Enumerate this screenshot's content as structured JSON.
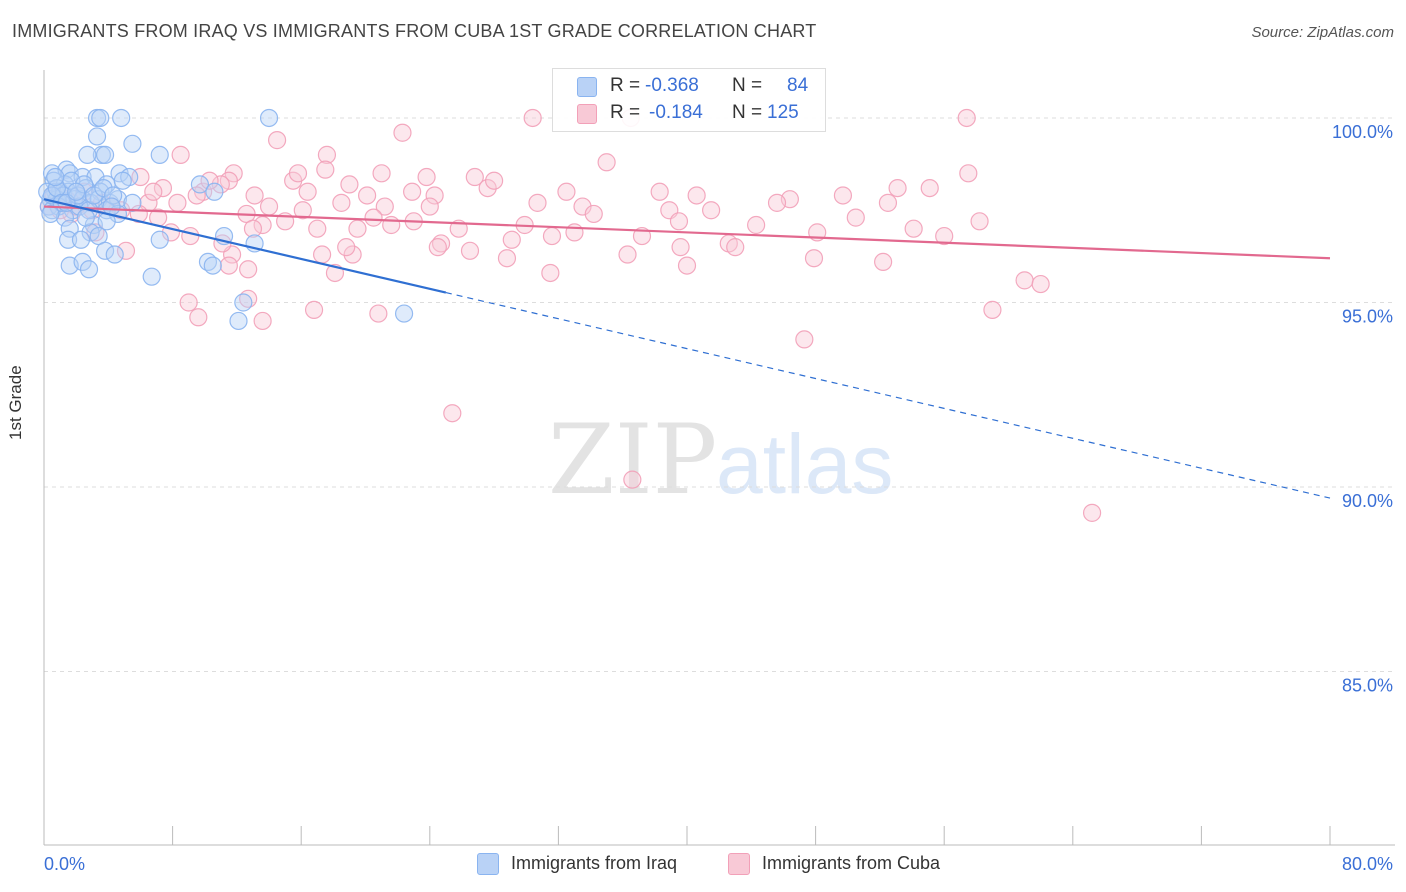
{
  "header": {
    "title": "IMMIGRANTS FROM IRAQ VS IMMIGRANTS FROM CUBA 1ST GRADE CORRELATION CHART",
    "source": "Source: ZipAtlas.com"
  },
  "watermark": {
    "zip": "ZIP",
    "atlas": "atlas"
  },
  "colors": {
    "iraq": "#8ab4f0",
    "iraq_fill": "#b9d2f6",
    "iraq_line": "#2f6fd2",
    "cuba": "#f2a0b8",
    "cuba_fill": "#f8c9d6",
    "cuba_line": "#e2698f",
    "axis_text": "#3a6fd6",
    "grid": "#dddddd"
  },
  "stats": [
    {
      "r_label": "R =",
      "r_value": "-0.368",
      "n_label": "N =",
      "n_value": "84"
    },
    {
      "r_label": "R =",
      "r_value": "-0.184",
      "n_label": "N =",
      "n_value": "125"
    }
  ],
  "legend": [
    {
      "label": "Immigrants from Iraq"
    },
    {
      "label": "Immigrants from Cuba"
    }
  ],
  "chart_data": {
    "type": "scatter",
    "title": "IMMIGRANTS FROM IRAQ VS IMMIGRANTS FROM CUBA 1ST GRADE CORRELATION CHART",
    "ylabel": "1st Grade",
    "xlabel": "",
    "xlim": [
      0,
      80
    ],
    "ylim": [
      80.3,
      101.3
    ],
    "x_tick_labels": [
      "0.0%",
      "80.0%"
    ],
    "y_ticks": [
      {
        "value": 100,
        "label": "100.0%"
      },
      {
        "value": 95,
        "label": "95.0%"
      },
      {
        "value": 90,
        "label": "90.0%"
      },
      {
        "value": 85,
        "label": "85.0%"
      }
    ],
    "grid": "horizontal dashed",
    "series": [
      {
        "name": "Immigrants from Iraq",
        "trend": {
          "x_start": 0,
          "y_start": 97.8,
          "x_solid_end": 25,
          "x_end": 80,
          "y_end": 89.7
        },
        "points": [
          [
            3.3,
            100
          ],
          [
            3.5,
            100
          ],
          [
            4.8,
            100
          ],
          [
            14,
            100
          ],
          [
            3.3,
            99.5
          ],
          [
            5.5,
            99.3
          ],
          [
            7.2,
            99
          ],
          [
            3.6,
            99
          ],
          [
            2.7,
            99
          ],
          [
            3.8,
            99
          ],
          [
            0.5,
            98.5
          ],
          [
            1.4,
            98.6
          ],
          [
            1.6,
            98.5
          ],
          [
            2.4,
            98.4
          ],
          [
            3.2,
            98.4
          ],
          [
            4.7,
            98.5
          ],
          [
            5.3,
            98.4
          ],
          [
            0.6,
            98.3
          ],
          [
            1.3,
            98.2
          ],
          [
            3.9,
            98.2
          ],
          [
            9.7,
            98.2
          ],
          [
            0.7,
            98
          ],
          [
            1.0,
            98
          ],
          [
            1.5,
            98
          ],
          [
            2.6,
            98.1
          ],
          [
            3.5,
            98
          ],
          [
            10.6,
            98
          ],
          [
            0.4,
            97.8
          ],
          [
            0.8,
            97.8
          ],
          [
            1.2,
            97.9
          ],
          [
            1.9,
            97.8
          ],
          [
            2.4,
            97.8
          ],
          [
            2.9,
            97.7
          ],
          [
            3.4,
            97.8
          ],
          [
            4.1,
            97.7
          ],
          [
            4.6,
            97.8
          ],
          [
            5.5,
            97.7
          ],
          [
            0.3,
            97.6
          ],
          [
            0.9,
            97.6
          ],
          [
            1.8,
            97.5
          ],
          [
            2.2,
            97.6
          ],
          [
            3.9,
            97.5
          ],
          [
            4.6,
            97.4
          ],
          [
            0.5,
            97.5
          ],
          [
            1.3,
            97.3
          ],
          [
            3.1,
            97.1
          ],
          [
            3.9,
            97.2
          ],
          [
            1.6,
            97
          ],
          [
            2.9,
            96.9
          ],
          [
            3.4,
            96.8
          ],
          [
            1.5,
            96.7
          ],
          [
            2.3,
            96.7
          ],
          [
            7.2,
            96.7
          ],
          [
            11.2,
            96.8
          ],
          [
            13.1,
            96.6
          ],
          [
            3.8,
            96.4
          ],
          [
            4.4,
            96.3
          ],
          [
            1.6,
            96
          ],
          [
            2.4,
            96.1
          ],
          [
            2.8,
            95.9
          ],
          [
            10.2,
            96.1
          ],
          [
            10.5,
            96
          ],
          [
            6.7,
            95.7
          ],
          [
            12.4,
            95
          ],
          [
            12.1,
            94.5
          ],
          [
            22.4,
            94.7
          ],
          [
            0.2,
            98
          ],
          [
            0.5,
            97.9
          ],
          [
            0.8,
            98.1
          ],
          [
            1.1,
            97.7
          ],
          [
            1.7,
            98.3
          ],
          [
            2.1,
            97.9
          ],
          [
            2.5,
            98.2
          ],
          [
            2.8,
            97.5
          ],
          [
            3.1,
            97.9
          ],
          [
            3.7,
            98.1
          ],
          [
            4.3,
            97.9
          ],
          [
            4.9,
            98.3
          ],
          [
            1.4,
            97.7
          ],
          [
            2.0,
            98.0
          ],
          [
            0.4,
            97.4
          ],
          [
            0.7,
            98.4
          ],
          [
            2.6,
            97.3
          ],
          [
            4.2,
            97.6
          ]
        ]
      },
      {
        "name": "Immigrants from Cuba",
        "trend": {
          "x_start": 0,
          "y_start": 97.6,
          "x_end": 80,
          "y_end": 96.2
        },
        "points": [
          [
            30.4,
            100
          ],
          [
            36.5,
            100
          ],
          [
            57.4,
            100
          ],
          [
            14.5,
            99.4
          ],
          [
            22.3,
            99.6
          ],
          [
            8.5,
            99
          ],
          [
            17.6,
            99
          ],
          [
            21.0,
            98.5
          ],
          [
            23.8,
            98.4
          ],
          [
            57.5,
            98.5
          ],
          [
            11.8,
            98.5
          ],
          [
            11.5,
            98.3
          ],
          [
            15.5,
            98.3
          ],
          [
            17.5,
            98.6
          ],
          [
            26.8,
            98.4
          ],
          [
            7.4,
            98.1
          ],
          [
            11.0,
            98.2
          ],
          [
            16.4,
            98
          ],
          [
            22.9,
            98
          ],
          [
            27.6,
            98.1
          ],
          [
            38.3,
            98
          ],
          [
            53.1,
            98.1
          ],
          [
            55.1,
            98.1
          ],
          [
            9.9,
            98
          ],
          [
            13.1,
            97.9
          ],
          [
            20.1,
            97.9
          ],
          [
            24.3,
            97.9
          ],
          [
            30.7,
            97.7
          ],
          [
            40.6,
            97.9
          ],
          [
            46.4,
            97.8
          ],
          [
            49.7,
            97.9
          ],
          [
            4.2,
            97.6
          ],
          [
            6.5,
            97.7
          ],
          [
            8.3,
            97.7
          ],
          [
            12.6,
            97.4
          ],
          [
            16.1,
            97.5
          ],
          [
            18.5,
            97.7
          ],
          [
            24.0,
            97.6
          ],
          [
            33.5,
            97.6
          ],
          [
            38.9,
            97.5
          ],
          [
            45.6,
            97.7
          ],
          [
            1.7,
            97.4
          ],
          [
            7.1,
            97.3
          ],
          [
            13.6,
            97.1
          ],
          [
            17.0,
            97.0
          ],
          [
            19.5,
            97.0
          ],
          [
            21.6,
            97.1
          ],
          [
            29.9,
            97.1
          ],
          [
            39.5,
            97.2
          ],
          [
            44.3,
            97.1
          ],
          [
            54.1,
            97.0
          ],
          [
            3.2,
            96.9
          ],
          [
            9.1,
            96.8
          ],
          [
            24.7,
            96.6
          ],
          [
            29.1,
            96.7
          ],
          [
            31.6,
            96.8
          ],
          [
            37.2,
            96.8
          ],
          [
            42.6,
            96.6
          ],
          [
            48.1,
            96.9
          ],
          [
            52.2,
            96.1
          ],
          [
            5.1,
            96.4
          ],
          [
            11.7,
            96.3
          ],
          [
            17.3,
            96.3
          ],
          [
            19.2,
            96.3
          ],
          [
            24.5,
            96.5
          ],
          [
            36.3,
            96.3
          ],
          [
            39.6,
            96.5
          ],
          [
            11.5,
            96.0
          ],
          [
            12.7,
            95.9
          ],
          [
            18.1,
            95.8
          ],
          [
            31.5,
            95.8
          ],
          [
            47.9,
            96.2
          ],
          [
            9.0,
            95.0
          ],
          [
            12.7,
            95.1
          ],
          [
            16.8,
            94.8
          ],
          [
            20.8,
            94.7
          ],
          [
            9.6,
            94.6
          ],
          [
            13.6,
            94.5
          ],
          [
            61.0,
            95.6
          ],
          [
            62.0,
            95.5
          ],
          [
            59.0,
            94.8
          ],
          [
            47.3,
            94.0
          ],
          [
            25.4,
            92.0
          ],
          [
            36.6,
            90.2
          ],
          [
            65.2,
            89.3
          ],
          [
            0.3,
            97.6
          ],
          [
            0.6,
            97.9
          ],
          [
            1.0,
            97.5
          ],
          [
            1.4,
            97.8
          ],
          [
            2.0,
            97.6
          ],
          [
            2.5,
            98.0
          ],
          [
            3.0,
            97.5
          ],
          [
            3.6,
            97.7
          ],
          [
            4.8,
            97.5
          ],
          [
            5.9,
            97.4
          ],
          [
            6.8,
            98.0
          ],
          [
            10.3,
            98.3
          ],
          [
            14.0,
            97.6
          ],
          [
            15.0,
            97.2
          ],
          [
            19.0,
            98.2
          ],
          [
            21.2,
            97.6
          ],
          [
            23.0,
            97.2
          ],
          [
            25.8,
            97.0
          ],
          [
            28.0,
            98.3
          ],
          [
            32.5,
            98.0
          ],
          [
            34.2,
            97.4
          ],
          [
            35.0,
            98.8
          ],
          [
            41.5,
            97.5
          ],
          [
            43.0,
            96.5
          ],
          [
            50.5,
            97.3
          ],
          [
            52.5,
            97.7
          ],
          [
            56.0,
            96.8
          ],
          [
            58.2,
            97.2
          ],
          [
            7.9,
            96.9
          ],
          [
            11.1,
            96.6
          ],
          [
            18.8,
            96.5
          ],
          [
            26.5,
            96.4
          ],
          [
            28.8,
            96.2
          ],
          [
            33.0,
            96.9
          ],
          [
            40.0,
            96.0
          ],
          [
            6.0,
            98.4
          ],
          [
            9.5,
            97.9
          ],
          [
            13.0,
            97.0
          ],
          [
            15.8,
            98.5
          ],
          [
            20.5,
            97.3
          ]
        ]
      }
    ]
  }
}
